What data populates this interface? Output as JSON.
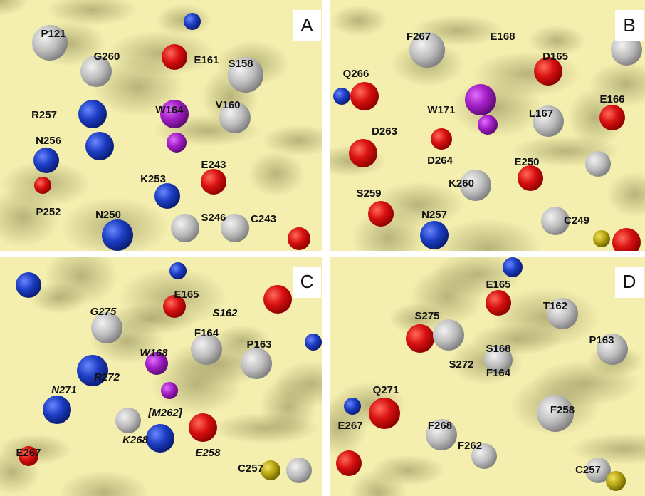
{
  "panels": [
    {
      "letter": "A",
      "labels": [
        "P121",
        "G260",
        "E161",
        "S158",
        "W164",
        "V160",
        "R257",
        "N256",
        "E243",
        "K253",
        "P252",
        "N250",
        "S246",
        "C243"
      ]
    },
    {
      "letter": "B",
      "labels": [
        "F267",
        "E168",
        "D165",
        "Q266",
        "W171",
        "E166",
        "L167",
        "D263",
        "D264",
        "E250",
        "K260",
        "S259",
        "N257",
        "C249"
      ]
    },
    {
      "letter": "C",
      "labels": [
        "E165",
        "G275",
        "S162",
        "F164",
        "P163",
        "W168",
        "R272",
        "N271",
        "[M262]",
        "K268",
        "E258",
        "E267",
        "C257"
      ]
    },
    {
      "letter": "D",
      "labels": [
        "E165",
        "T162",
        "S275",
        "P163",
        "S168",
        "S272",
        "F164",
        "Q271",
        "F258",
        "E267",
        "F268",
        "F262",
        "C257"
      ]
    }
  ]
}
